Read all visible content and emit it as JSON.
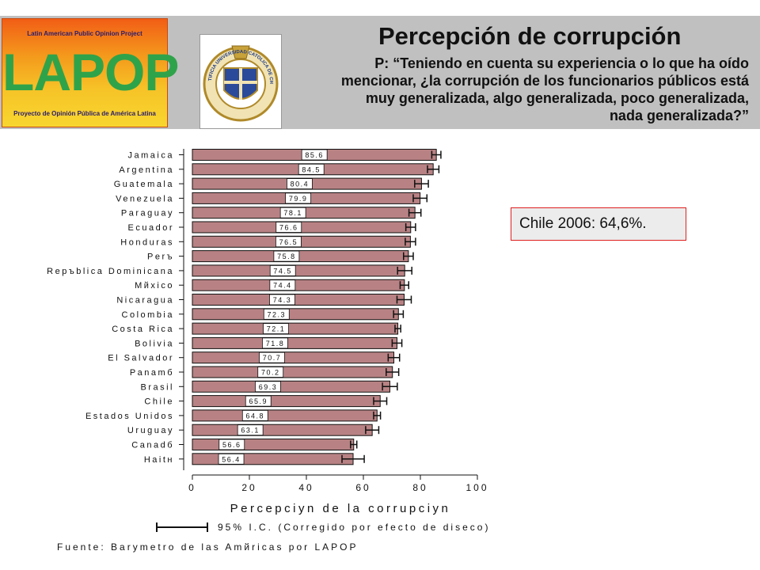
{
  "header": {
    "logo_top_text": "Latin American Public Opinion Project",
    "logo_big_text": "LAPOP",
    "logo_bottom_text": "Proyecto de Opinión Pública de América Latina",
    "seal_text": "PONTIFICIA UNIVERSIDAD CATOLICA DE CHILE",
    "title": "Percepción de corrupción",
    "question": "P: “Teniendo en cuenta su experiencia o lo que ha oído mencionar, ¿la corrupción de los funcionarios públicos está muy generalizada, algo generalizada, poco generalizada, nada generalizada?”"
  },
  "note": "Chile 2006: 64,6%.",
  "chart_data": {
    "type": "bar",
    "orientation": "horizontal",
    "categories": [
      "Jamaica",
      "Argentina",
      "Guatemala",
      "Venezuela",
      "Paraguay",
      "Ecuador",
      "Honduras",
      "Perъ",
      "Repъblica Dominicana",
      "Mйxico",
      "Nicaragua",
      "Colombia",
      "Costa Rica",
      "Bolivia",
      "El Salvador",
      "Panamб",
      "Brasil",
      "Chile",
      "Estados Unidos",
      "Uruguay",
      "Canadб",
      "Haitн"
    ],
    "values": [
      85.6,
      84.5,
      80.4,
      79.9,
      78.1,
      76.6,
      76.5,
      75.8,
      74.5,
      74.4,
      74.3,
      72.3,
      72.1,
      71.8,
      70.7,
      70.2,
      69.3,
      65.9,
      64.8,
      63.1,
      56.6,
      56.4
    ],
    "value_labels": [
      "85.6",
      "84.5",
      "80.4",
      "79.9",
      "78.1",
      "76.6",
      "76.5",
      "75.8",
      "74.5",
      "74.4",
      "74.3",
      "72.3",
      "72.1",
      "71.8",
      "70.7",
      "70.2",
      "69.3",
      "65.9",
      "64.8",
      "63.1",
      "56.6",
      "56.4"
    ],
    "ci_half": [
      1.6,
      2.0,
      2.4,
      2.4,
      2.1,
      1.7,
      1.8,
      1.7,
      2.5,
      1.5,
      2.5,
      1.7,
      1.0,
      1.7,
      2.0,
      2.2,
      2.6,
      2.3,
      1.2,
      2.3,
      1.1,
      3.9
    ],
    "xlabel": "Percepciyn de la corrupciyn",
    "xlim": [
      0,
      100
    ],
    "x_ticks": [
      "0",
      "20",
      "40",
      "60",
      "80",
      "100"
    ],
    "bar_color": "#b88284",
    "legend": "95% I.C. (Corregido por efecto de diseсo)",
    "source": "Fuente: Barymetro de las Amйricas por LAPOP"
  }
}
